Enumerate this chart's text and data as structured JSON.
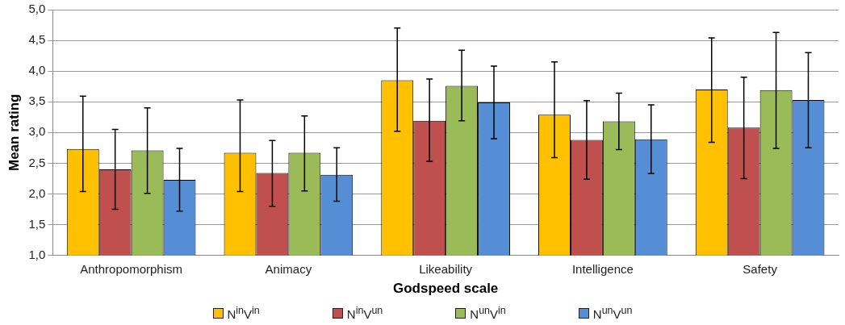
{
  "chart_data": {
    "type": "bar",
    "xlabel": "Godspeed scale",
    "ylabel": "Mean rating",
    "categories": [
      "Anthropomorphism",
      "Animacy",
      "Likeability",
      "Intelligence",
      "Safety"
    ],
    "series": [
      {
        "name": "N$^{in}$V$^{in}$",
        "color": "#ffc000",
        "values": [
          2.73,
          2.67,
          3.85,
          3.29,
          3.7
        ],
        "errors": [
          [
            2.04,
            3.59
          ],
          [
            2.04,
            3.53
          ],
          [
            3.02,
            4.7
          ],
          [
            2.59,
            4.15
          ],
          [
            2.84,
            4.54
          ]
        ]
      },
      {
        "name": "N$^{in}$V$^{un}$",
        "color": "#c0504d",
        "values": [
          2.4,
          2.34,
          3.19,
          2.88,
          3.08
        ],
        "errors": [
          [
            1.75,
            3.05
          ],
          [
            1.8,
            2.87
          ],
          [
            2.53,
            3.87
          ],
          [
            2.24,
            3.52
          ],
          [
            2.25,
            3.9
          ]
        ]
      },
      {
        "name": "N$^{un}$V$^{in}$",
        "color": "#9bbb59",
        "values": [
          2.71,
          2.67,
          3.76,
          3.18,
          3.69
        ],
        "errors": [
          [
            2.01,
            3.4
          ],
          [
            2.05,
            3.27
          ],
          [
            3.19,
            4.34
          ],
          [
            2.72,
            3.64
          ],
          [
            2.74,
            4.63
          ]
        ]
      },
      {
        "name": "N$^{un}$V$^{un}$",
        "color": "#558ed5",
        "values": [
          2.23,
          2.31,
          3.49,
          2.89,
          3.53
        ],
        "errors": [
          [
            1.72,
            2.74
          ],
          [
            1.88,
            2.75
          ],
          [
            2.9,
            4.08
          ],
          [
            2.33,
            3.45
          ],
          [
            2.75,
            4.3
          ]
        ]
      }
    ],
    "ylim": [
      1,
      5
    ],
    "yticks": [
      {
        "value": 1,
        "label": "1,0"
      },
      {
        "value": 1.5,
        "label": "1,5"
      },
      {
        "value": 2,
        "label": "2,0"
      },
      {
        "value": 2.5,
        "label": "2,5"
      },
      {
        "value": 3,
        "label": "3,0"
      },
      {
        "value": 3.5,
        "label": "3,5"
      },
      {
        "value": 4,
        "label": "4,0"
      },
      {
        "value": 4.5,
        "label": "4,5"
      },
      {
        "value": 5,
        "label": "5,0"
      }
    ],
    "grid": "y",
    "legend": "bottom"
  }
}
